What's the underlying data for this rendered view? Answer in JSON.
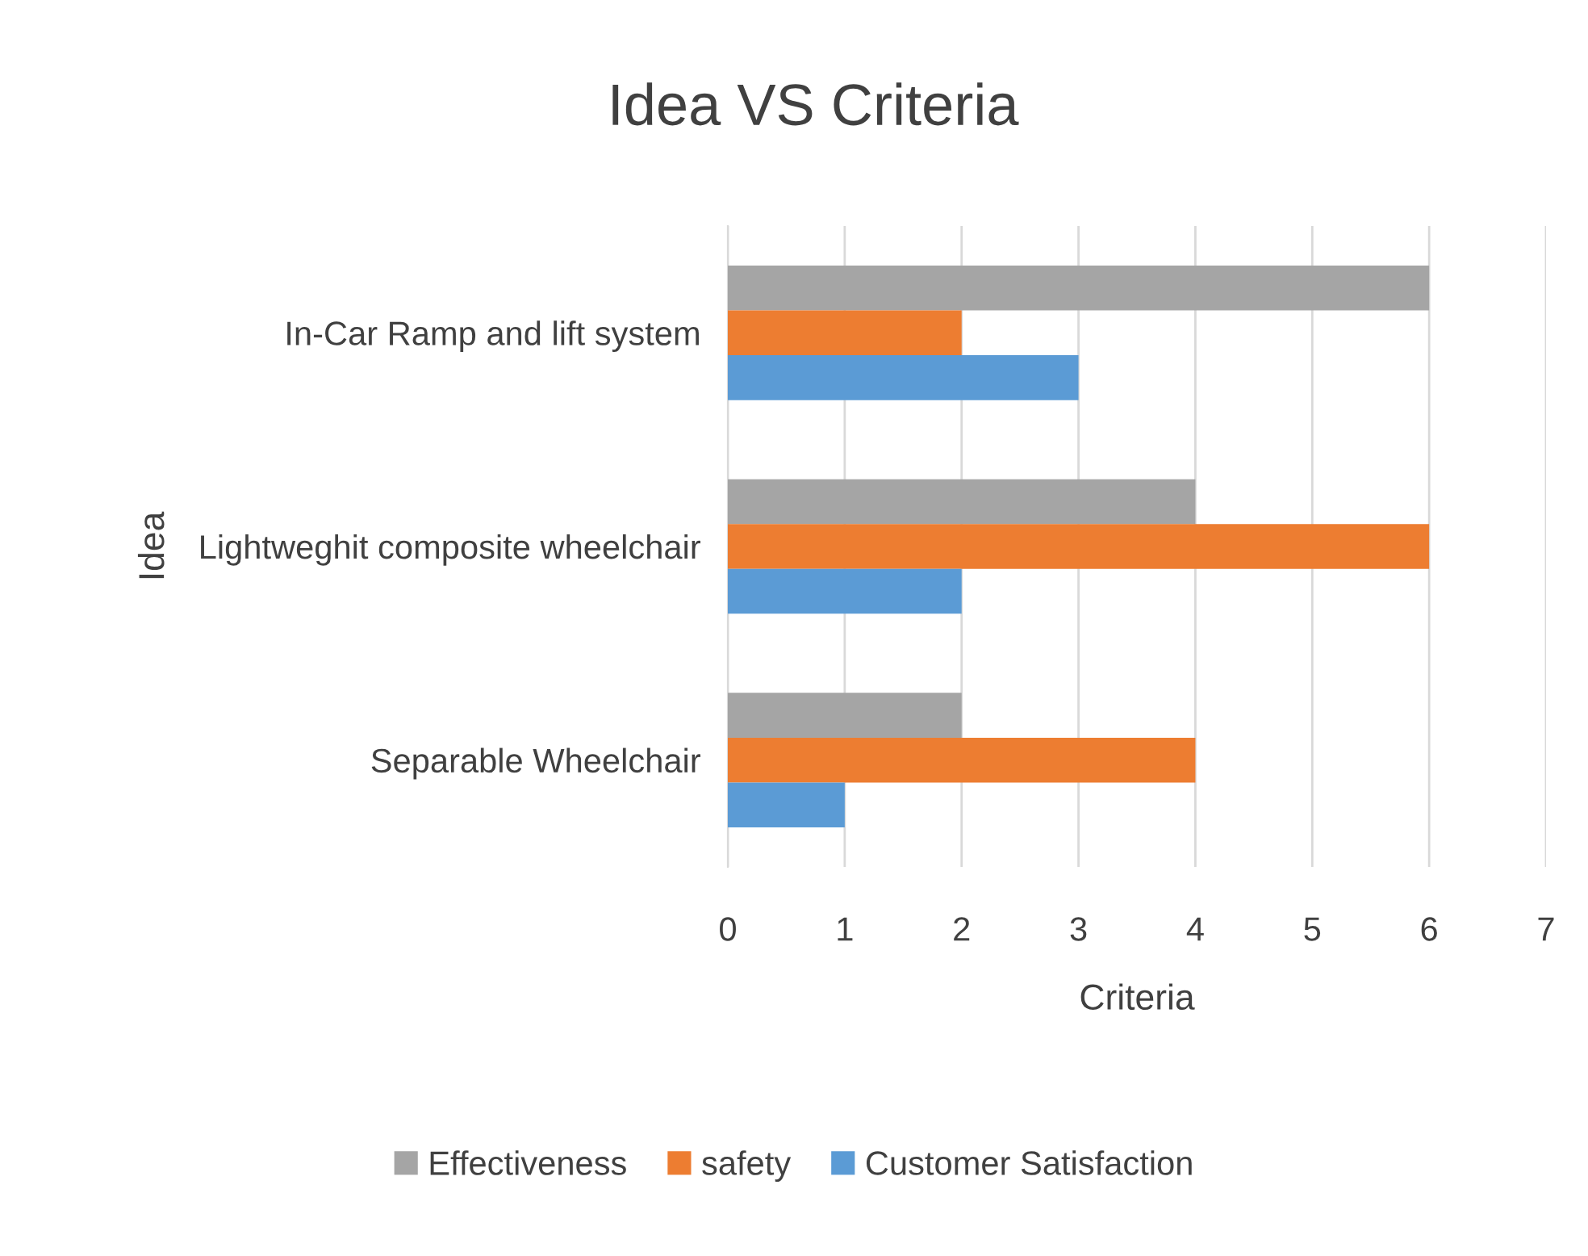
{
  "chart_data": {
    "type": "bar",
    "orientation": "horizontal",
    "title": "Idea VS Criteria",
    "xlabel": "Criteria",
    "ylabel": "Idea",
    "categories": [
      "In-Car Ramp and lift system",
      "Lightweghit composite wheelchair",
      "Separable Wheelchair"
    ],
    "series": [
      {
        "name": "Effectiveness",
        "color": "#a5a5a5",
        "values": [
          6,
          4,
          2
        ]
      },
      {
        "name": "safety",
        "color": "#ed7d31",
        "values": [
          2,
          6,
          4
        ]
      },
      {
        "name": "Customer Satisfaction",
        "color": "#5b9bd5",
        "values": [
          3,
          2,
          1
        ]
      }
    ],
    "xlim": [
      0,
      7
    ],
    "xticks": [
      0,
      1,
      2,
      3,
      4,
      5,
      6,
      7
    ],
    "grid": "x",
    "legend": "bottom"
  }
}
